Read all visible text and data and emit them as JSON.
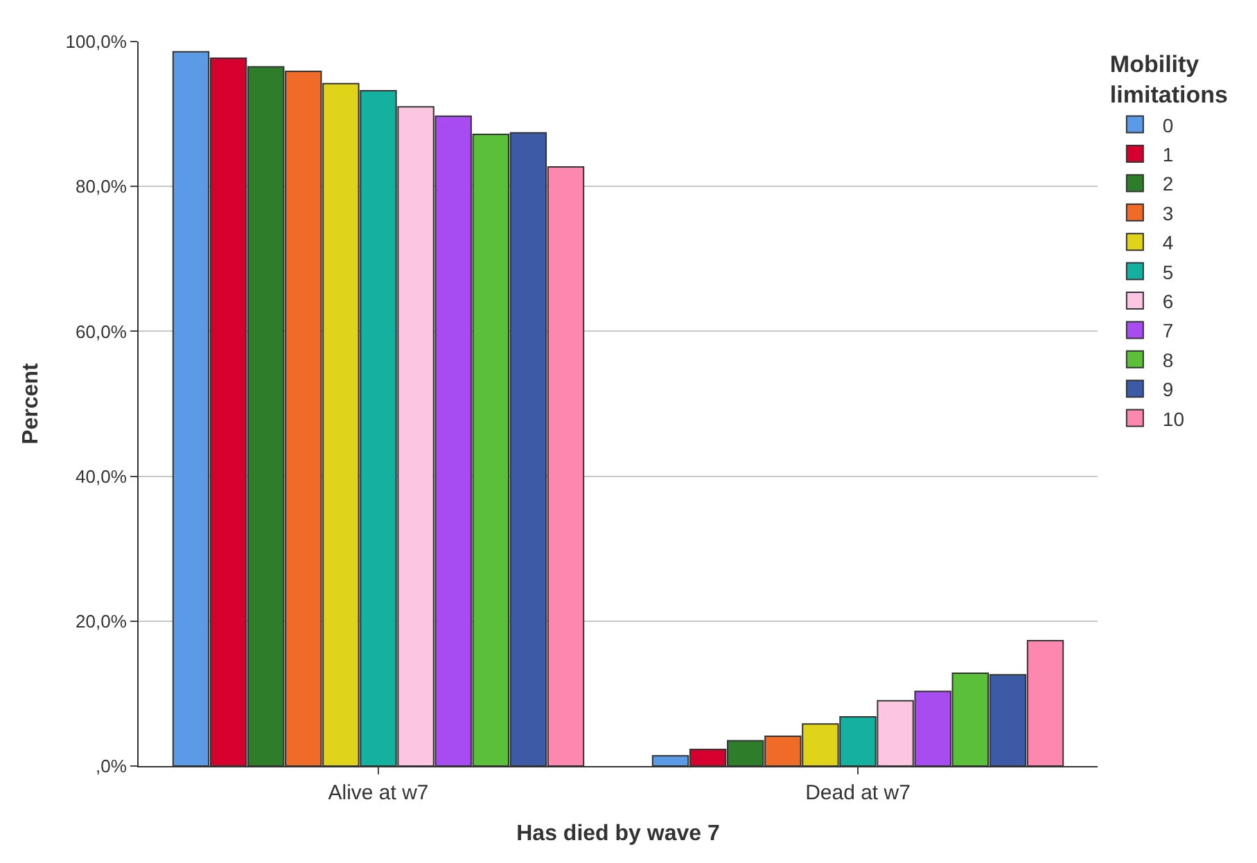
{
  "chart_data": {
    "type": "bar",
    "xlabel": "Has died by wave 7",
    "ylabel": "Percent",
    "legend_title": "Mobility limitations",
    "categories": [
      "Alive at w7",
      "Dead at w7"
    ],
    "series": [
      {
        "name": "0",
        "color": "#5a9ae6",
        "values": [
          98.6,
          1.4
        ]
      },
      {
        "name": "1",
        "color": "#d6002e",
        "values": [
          97.7,
          2.3
        ]
      },
      {
        "name": "2",
        "color": "#2e7d2a",
        "values": [
          96.5,
          3.5
        ]
      },
      {
        "name": "3",
        "color": "#f06a28",
        "values": [
          95.9,
          4.1
        ]
      },
      {
        "name": "4",
        "color": "#e0d41a",
        "values": [
          94.2,
          5.8
        ]
      },
      {
        "name": "5",
        "color": "#14b0a0",
        "values": [
          93.2,
          6.8
        ]
      },
      {
        "name": "6",
        "color": "#fcc6e0",
        "values": [
          91.0,
          9.0
        ]
      },
      {
        "name": "7",
        "color": "#a64cf0",
        "values": [
          89.7,
          10.3
        ]
      },
      {
        "name": "8",
        "color": "#5cbf3a",
        "values": [
          87.2,
          12.8
        ]
      },
      {
        "name": "9",
        "color": "#3c5aa6",
        "values": [
          87.4,
          12.6
        ]
      },
      {
        "name": "10",
        "color": "#fc88b0",
        "values": [
          82.7,
          17.3
        ]
      }
    ],
    "ylim": [
      0,
      100
    ],
    "yticks": [
      {
        "value": 0,
        "label": ",0%"
      },
      {
        "value": 20,
        "label": "20,0%"
      },
      {
        "value": 40,
        "label": "40,0%"
      },
      {
        "value": 60,
        "label": "60,0%"
      },
      {
        "value": 80,
        "label": "80,0%"
      },
      {
        "value": 100,
        "label": "100,0%"
      }
    ],
    "grid": "y",
    "legend": "top right"
  }
}
